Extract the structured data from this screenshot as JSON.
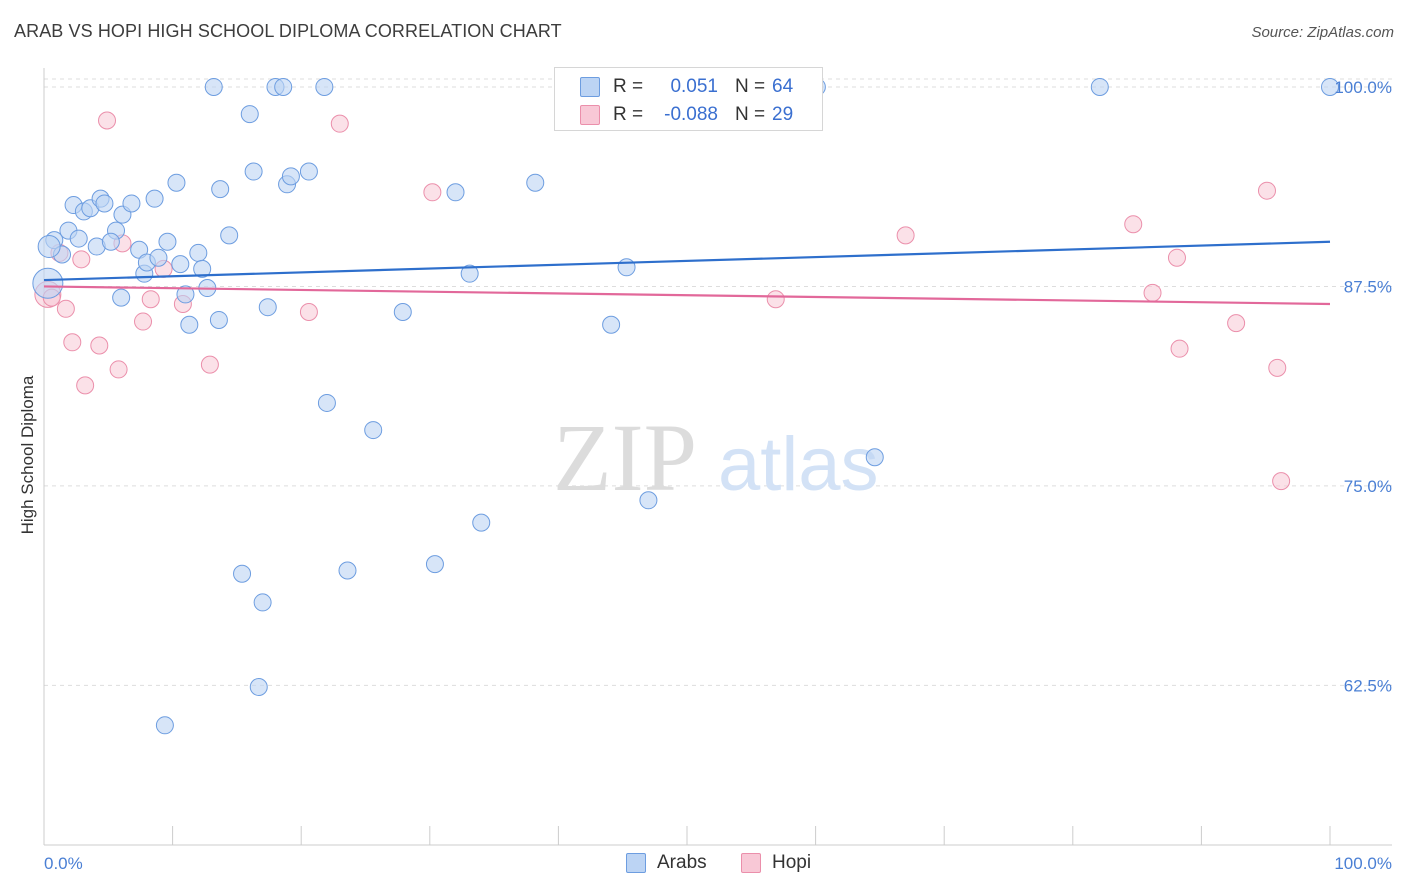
{
  "title": "ARAB VS HOPI HIGH SCHOOL DIPLOMA CORRELATION CHART",
  "source": "Source: ZipAtlas.com",
  "watermark": {
    "zip": "ZIP",
    "atlas": "atlas"
  },
  "colors": {
    "arabs_fill": "#bcd4f4",
    "arabs_stroke": "#6d9de0",
    "arabs_line": "#2e6fcc",
    "hopi_fill": "#f8c8d6",
    "hopi_stroke": "#eb8fab",
    "hopi_line": "#e2689a",
    "tick_label": "#4a7fd4",
    "grid": "#dddddd"
  },
  "legend": {
    "rows": [
      {
        "r_label": "R =",
        "r_value": "0.051",
        "n_label": "N =",
        "n_value": "64"
      },
      {
        "r_label": "R =",
        "r_value": "-0.088",
        "n_label": "N =",
        "n_value": "29"
      }
    ]
  },
  "chart_data": {
    "type": "scatter",
    "xlabel": "",
    "ylabel": "High School Diploma",
    "xlim": [
      0,
      100
    ],
    "ylim": [
      52.5,
      101.0
    ],
    "x_tick_labels": [
      "0.0%",
      "100.0%"
    ],
    "y_ticks": [
      62.5,
      75.0,
      87.5,
      100.0
    ],
    "y_tick_labels": [
      "62.5%",
      "75.0%",
      "87.5%",
      "100.0%"
    ],
    "grid": "horizontal dashed",
    "legend_position": "top-center",
    "series": [
      {
        "name": "Arabs",
        "trend": {
          "start": [
            0,
            87.9
          ],
          "end": [
            100,
            90.3
          ]
        },
        "points": [
          [
            0.3,
            87.7
          ],
          [
            0.8,
            90.4
          ],
          [
            1.4,
            89.5
          ],
          [
            1.9,
            91.0
          ],
          [
            2.3,
            92.6
          ],
          [
            2.7,
            90.5
          ],
          [
            3.1,
            92.2
          ],
          [
            3.6,
            92.4
          ],
          [
            4.1,
            90.0
          ],
          [
            4.4,
            93.0
          ],
          [
            4.7,
            92.7
          ],
          [
            5.6,
            91.0
          ],
          [
            5.2,
            90.3
          ],
          [
            6.1,
            92.0
          ],
          [
            6.0,
            86.8
          ],
          [
            6.8,
            92.7
          ],
          [
            7.4,
            89.8
          ],
          [
            7.8,
            88.3
          ],
          [
            8.0,
            89.0
          ],
          [
            8.6,
            93.0
          ],
          [
            8.9,
            89.3
          ],
          [
            9.6,
            90.3
          ],
          [
            10.3,
            94.0
          ],
          [
            10.6,
            88.9
          ],
          [
            11.0,
            87.0
          ],
          [
            11.3,
            85.1
          ],
          [
            12.0,
            89.6
          ],
          [
            12.3,
            88.6
          ],
          [
            12.7,
            87.4
          ],
          [
            13.2,
            100.0
          ],
          [
            13.6,
            85.4
          ],
          [
            13.7,
            93.6
          ],
          [
            14.4,
            90.7
          ],
          [
            15.4,
            69.5
          ],
          [
            16.0,
            98.3
          ],
          [
            16.3,
            94.7
          ],
          [
            16.7,
            62.4
          ],
          [
            17.0,
            67.7
          ],
          [
            17.4,
            86.2
          ],
          [
            18.0,
            100.0
          ],
          [
            18.6,
            100.0
          ],
          [
            18.9,
            93.9
          ],
          [
            19.2,
            94.4
          ],
          [
            20.6,
            94.7
          ],
          [
            21.8,
            100.0
          ],
          [
            22.0,
            80.2
          ],
          [
            23.6,
            69.7
          ],
          [
            25.6,
            78.5
          ],
          [
            27.9,
            85.9
          ],
          [
            30.4,
            70.1
          ],
          [
            32.0,
            93.4
          ],
          [
            33.1,
            88.3
          ],
          [
            34.0,
            72.7
          ],
          [
            38.2,
            94.0
          ],
          [
            44.1,
            85.1
          ],
          [
            45.3,
            88.7
          ],
          [
            47.0,
            74.1
          ],
          [
            48.5,
            100.0
          ],
          [
            60.1,
            100.0
          ],
          [
            64.6,
            76.8
          ],
          [
            82.1,
            100.0
          ],
          [
            100.0,
            100.0
          ],
          [
            9.4,
            60.0
          ],
          [
            0.4,
            90.0
          ]
        ]
      },
      {
        "name": "Hopi",
        "trend": {
          "start": [
            0,
            87.5
          ],
          "end": [
            100,
            86.4
          ]
        },
        "points": [
          [
            0.3,
            87.0
          ],
          [
            1.2,
            89.6
          ],
          [
            1.7,
            86.1
          ],
          [
            2.2,
            84.0
          ],
          [
            2.9,
            89.2
          ],
          [
            3.2,
            81.3
          ],
          [
            4.3,
            83.8
          ],
          [
            4.9,
            97.9
          ],
          [
            5.8,
            82.3
          ],
          [
            6.1,
            90.2
          ],
          [
            7.7,
            85.3
          ],
          [
            8.3,
            86.7
          ],
          [
            9.3,
            88.6
          ],
          [
            10.8,
            86.4
          ],
          [
            12.9,
            82.6
          ],
          [
            20.6,
            85.9
          ],
          [
            23.0,
            97.7
          ],
          [
            30.2,
            93.4
          ],
          [
            56.9,
            86.7
          ],
          [
            67.0,
            90.7
          ],
          [
            84.7,
            91.4
          ],
          [
            86.2,
            87.1
          ],
          [
            88.1,
            89.3
          ],
          [
            88.3,
            83.6
          ],
          [
            92.7,
            85.2
          ],
          [
            95.1,
            93.5
          ],
          [
            95.9,
            82.4
          ],
          [
            96.2,
            75.3
          ],
          [
            0.6,
            86.8
          ]
        ]
      }
    ]
  },
  "bottom_legend": {
    "arabs": "Arabs",
    "hopi": "Hopi"
  }
}
